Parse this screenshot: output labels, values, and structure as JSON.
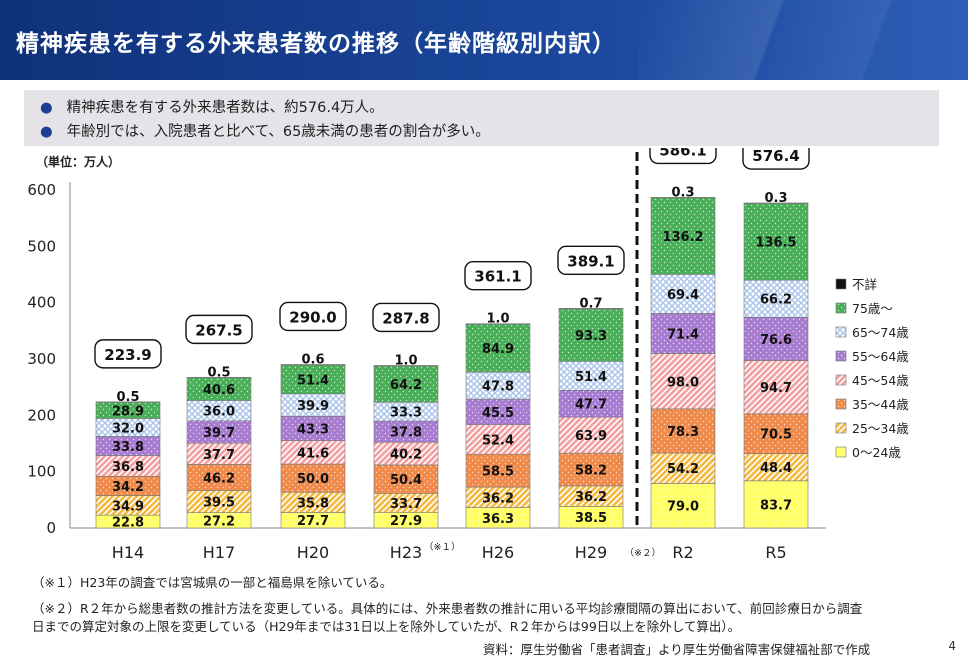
{
  "header": {
    "title": "精神疾患を有する外来患者数の推移（年齢階級別内訳）"
  },
  "summary": {
    "bullets": [
      "精神疾患を有する外来患者数は、約576.4万人。",
      "年齢別では、入院患者と比べて、65歳未満の患者の割合が多い。"
    ]
  },
  "chart_data": {
    "type": "bar",
    "stacked": true,
    "unit_label": "（単位：万人）",
    "ylim": [
      0,
      600
    ],
    "yticks": [
      0,
      100,
      200,
      300,
      400,
      500,
      600
    ],
    "categories": [
      "H14",
      "H17",
      "H20",
      "H23",
      "H26",
      "H29",
      "R2",
      "R5"
    ],
    "category_notes": {
      "H23": "（※１）",
      "R2": "（※２）"
    },
    "totals": [
      "223.9",
      "267.5",
      "290.0",
      "287.8",
      "361.1",
      "389.1",
      "586.1",
      "576.4"
    ],
    "series": [
      {
        "name": "0～24歳",
        "color": "#ffff66",
        "pattern": "dots",
        "values": [
          22.8,
          27.2,
          27.7,
          27.9,
          36.3,
          38.5,
          79.0,
          83.7
        ]
      },
      {
        "name": "25～34歳",
        "color": "#f5b941",
        "pattern": "diag-light",
        "values": [
          34.9,
          39.5,
          35.8,
          33.7,
          36.2,
          36.2,
          54.2,
          48.4
        ]
      },
      {
        "name": "35～44歳",
        "color": "#f08a4b",
        "pattern": "dots-dense",
        "values": [
          34.2,
          46.2,
          50.0,
          50.4,
          58.5,
          58.2,
          78.3,
          70.5
        ]
      },
      {
        "name": "45～54歳",
        "color": "#f4a0a0",
        "pattern": "diag",
        "values": [
          36.8,
          37.7,
          41.6,
          40.2,
          52.4,
          63.9,
          98.0,
          94.7
        ]
      },
      {
        "name": "55～64歳",
        "color": "#a77bd0",
        "pattern": "dots-dense",
        "values": [
          33.8,
          39.7,
          43.3,
          37.8,
          45.5,
          47.7,
          71.4,
          76.6
        ]
      },
      {
        "name": "65～74歳",
        "color": "#a9c4ea",
        "pattern": "cross",
        "values": [
          32.0,
          36.0,
          39.9,
          33.3,
          47.8,
          51.4,
          69.4,
          66.2
        ]
      },
      {
        "name": "75歳～",
        "color": "#49ae58",
        "pattern": "dots-dense",
        "values": [
          28.9,
          40.6,
          51.4,
          64.2,
          84.9,
          93.3,
          136.2,
          136.5
        ]
      },
      {
        "name": "不詳",
        "color": "#111111",
        "pattern": "solid",
        "values": [
          0.5,
          0.5,
          0.6,
          1.0,
          1.0,
          0.7,
          0.3,
          0.3
        ]
      }
    ],
    "legend_placement": "right",
    "divider_after": "H29",
    "grid": false
  },
  "notes": {
    "note1": "（※１）H23年の調査では宮城県の一部と福島県を除いている。",
    "note2_line1": "（※２）R２年から総患者数の推計方法を変更している。具体的には、外来患者数の推計に用いる平均診療間隔の算出において、前回診療日から調査",
    "note2_line2": "日までの算定対象の上限を変更している（H29年までは31日以上を除外していたが、R２年からは99日以上を除外して算出）。",
    "source": "資料：厚生労働省「患者調査」より厚生労働省障害保健福祉部で作成"
  },
  "page_number": "4"
}
